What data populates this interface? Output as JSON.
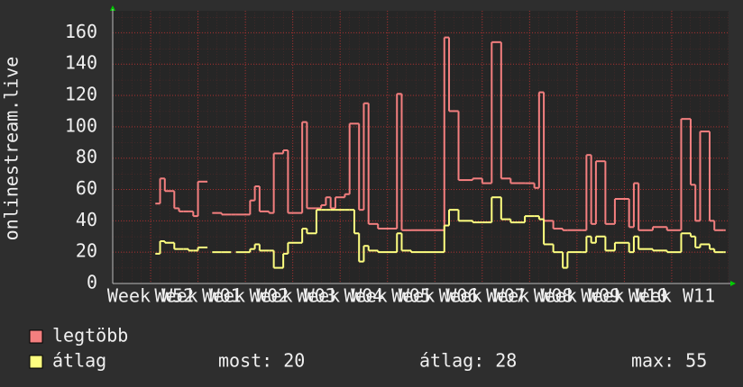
{
  "chart_data": {
    "type": "line",
    "step": true,
    "y_label": "onlinestream.live",
    "x": [
      9,
      10,
      11,
      13,
      14,
      15,
      16,
      17,
      18,
      20,
      21,
      23,
      25,
      26,
      29,
      30,
      31,
      33,
      34,
      36,
      37,
      40,
      41,
      43,
      44,
      45,
      46,
      47,
      49,
      50,
      51,
      52,
      53,
      54,
      56,
      60,
      61,
      63,
      70,
      71,
      73,
      76,
      78,
      80,
      82,
      84,
      87,
      89,
      90,
      91,
      93,
      95,
      96,
      99,
      100,
      101,
      102,
      104,
      106,
      109,
      110,
      111,
      114,
      117,
      120,
      122,
      123,
      124,
      126,
      127,
      129
    ],
    "series": [
      {
        "name": "legtöbb",
        "color": "#f47f7f",
        "values": [
          51,
          67,
          59,
          48,
          46,
          46,
          46,
          43,
          65,
          null,
          45,
          44,
          44,
          44,
          53,
          62,
          46,
          45,
          83,
          85,
          45,
          103,
          48,
          48,
          50,
          55,
          48,
          55,
          57,
          102,
          102,
          47,
          115,
          38,
          35,
          121,
          34,
          34,
          157,
          110,
          66,
          67,
          64,
          154,
          67,
          64,
          64,
          61,
          122,
          40,
          35,
          34,
          34,
          34,
          82,
          38,
          78,
          38,
          54,
          36,
          64,
          34,
          36,
          34,
          105,
          63,
          40,
          97,
          40,
          34,
          34
        ]
      },
      {
        "name": "átlag",
        "color": "#ffff80",
        "values": [
          19,
          27,
          26,
          22,
          22,
          22,
          21,
          21,
          23,
          null,
          20,
          20,
          null,
          20,
          22,
          25,
          21,
          21,
          10,
          19,
          26,
          35,
          32,
          47,
          47,
          47,
          47,
          47,
          47,
          47,
          32,
          14,
          24,
          21,
          20,
          32,
          21,
          20,
          37,
          47,
          40,
          39,
          39,
          55,
          41,
          39,
          43,
          43,
          41,
          25,
          20,
          10,
          20,
          20,
          30,
          26,
          30,
          21,
          26,
          20,
          30,
          22,
          21,
          20,
          32,
          30,
          23,
          25,
          22,
          20,
          20
        ]
      }
    ],
    "xlim": [
      0,
      130
    ],
    "xticks": [
      {
        "value": 8,
        "label": "Week W52"
      },
      {
        "value": 18,
        "label": "Week W01"
      },
      {
        "value": 28,
        "label": "Week W02"
      },
      {
        "value": 38,
        "label": "Week W03"
      },
      {
        "value": 48,
        "label": "Week W04"
      },
      {
        "value": 58,
        "label": "Week W05"
      },
      {
        "value": 68,
        "label": "Week W06"
      },
      {
        "value": 78,
        "label": "Week W07"
      },
      {
        "value": 88,
        "label": "Week W08"
      },
      {
        "value": 98,
        "label": "Week W09"
      },
      {
        "value": 108,
        "label": "Week W10"
      },
      {
        "value": 118,
        "label": "Week W11"
      }
    ],
    "ylim": [
      0,
      174
    ],
    "yticks": [
      0,
      20,
      40,
      60,
      80,
      100,
      120,
      140,
      160
    ],
    "grid": true,
    "stats": [
      {
        "label": "most:",
        "value": 20
      },
      {
        "label": "átlag:",
        "value": 28
      },
      {
        "label": "max:",
        "value": 55
      }
    ]
  }
}
